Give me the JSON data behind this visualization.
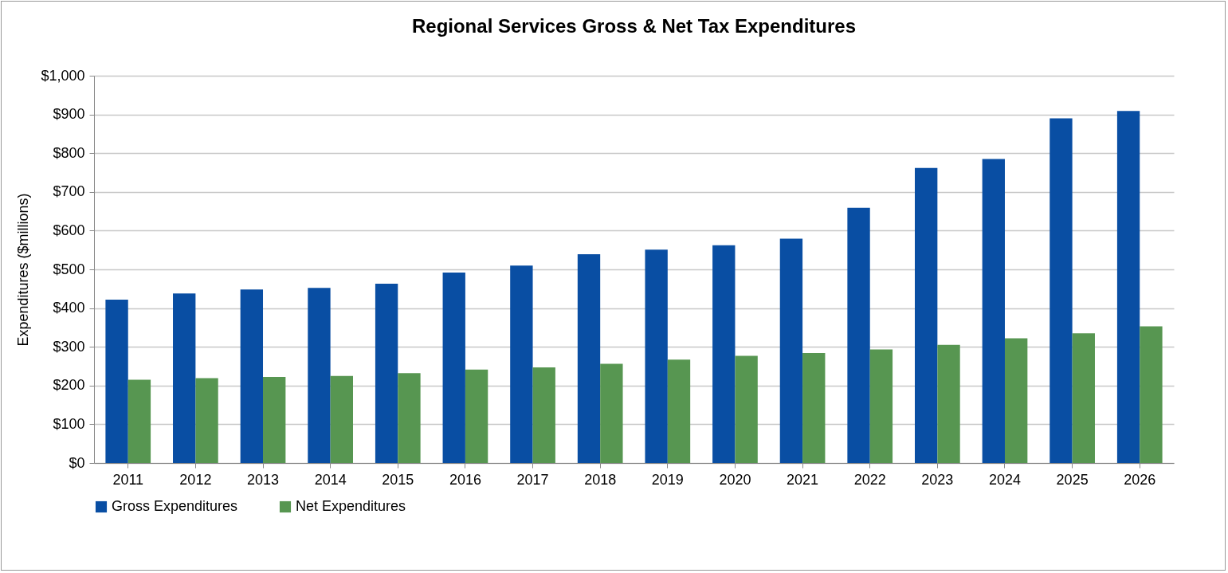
{
  "chart_data": {
    "type": "bar",
    "title": "Regional Services Gross & Net Tax Expenditures",
    "ylabel": "Expenditures ($millions)",
    "categories": [
      "2011",
      "2012",
      "2013",
      "2014",
      "2015",
      "2016",
      "2017",
      "2018",
      "2019",
      "2020",
      "2021",
      "2022",
      "2023",
      "2024",
      "2025",
      "2026"
    ],
    "series": [
      {
        "name": "Gross Expenditures",
        "color": "#094ea3",
        "values": [
          422,
          438,
          448,
          452,
          463,
          492,
          510,
          539,
          551,
          562,
          579,
          659,
          762,
          785,
          890,
          909
        ]
      },
      {
        "name": "Net Expenditures",
        "color": "#579651",
        "values": [
          215,
          219,
          222,
          225,
          232,
          241,
          247,
          256,
          267,
          277,
          284,
          293,
          305,
          322,
          335,
          353
        ]
      }
    ],
    "ylim": [
      0,
      1000
    ],
    "yticks": [
      {
        "value": 0,
        "label": "$0"
      },
      {
        "value": 100,
        "label": "$100"
      },
      {
        "value": 200,
        "label": "$200"
      },
      {
        "value": 300,
        "label": "$300"
      },
      {
        "value": 400,
        "label": "$400"
      },
      {
        "value": 500,
        "label": "$500"
      },
      {
        "value": 600,
        "label": "$600"
      },
      {
        "value": 700,
        "label": "$700"
      },
      {
        "value": 800,
        "label": "$800"
      },
      {
        "value": 900,
        "label": "$900"
      },
      {
        "value": 1000,
        "label": "$1,000"
      }
    ],
    "grid": "y",
    "legend": "bottom"
  }
}
